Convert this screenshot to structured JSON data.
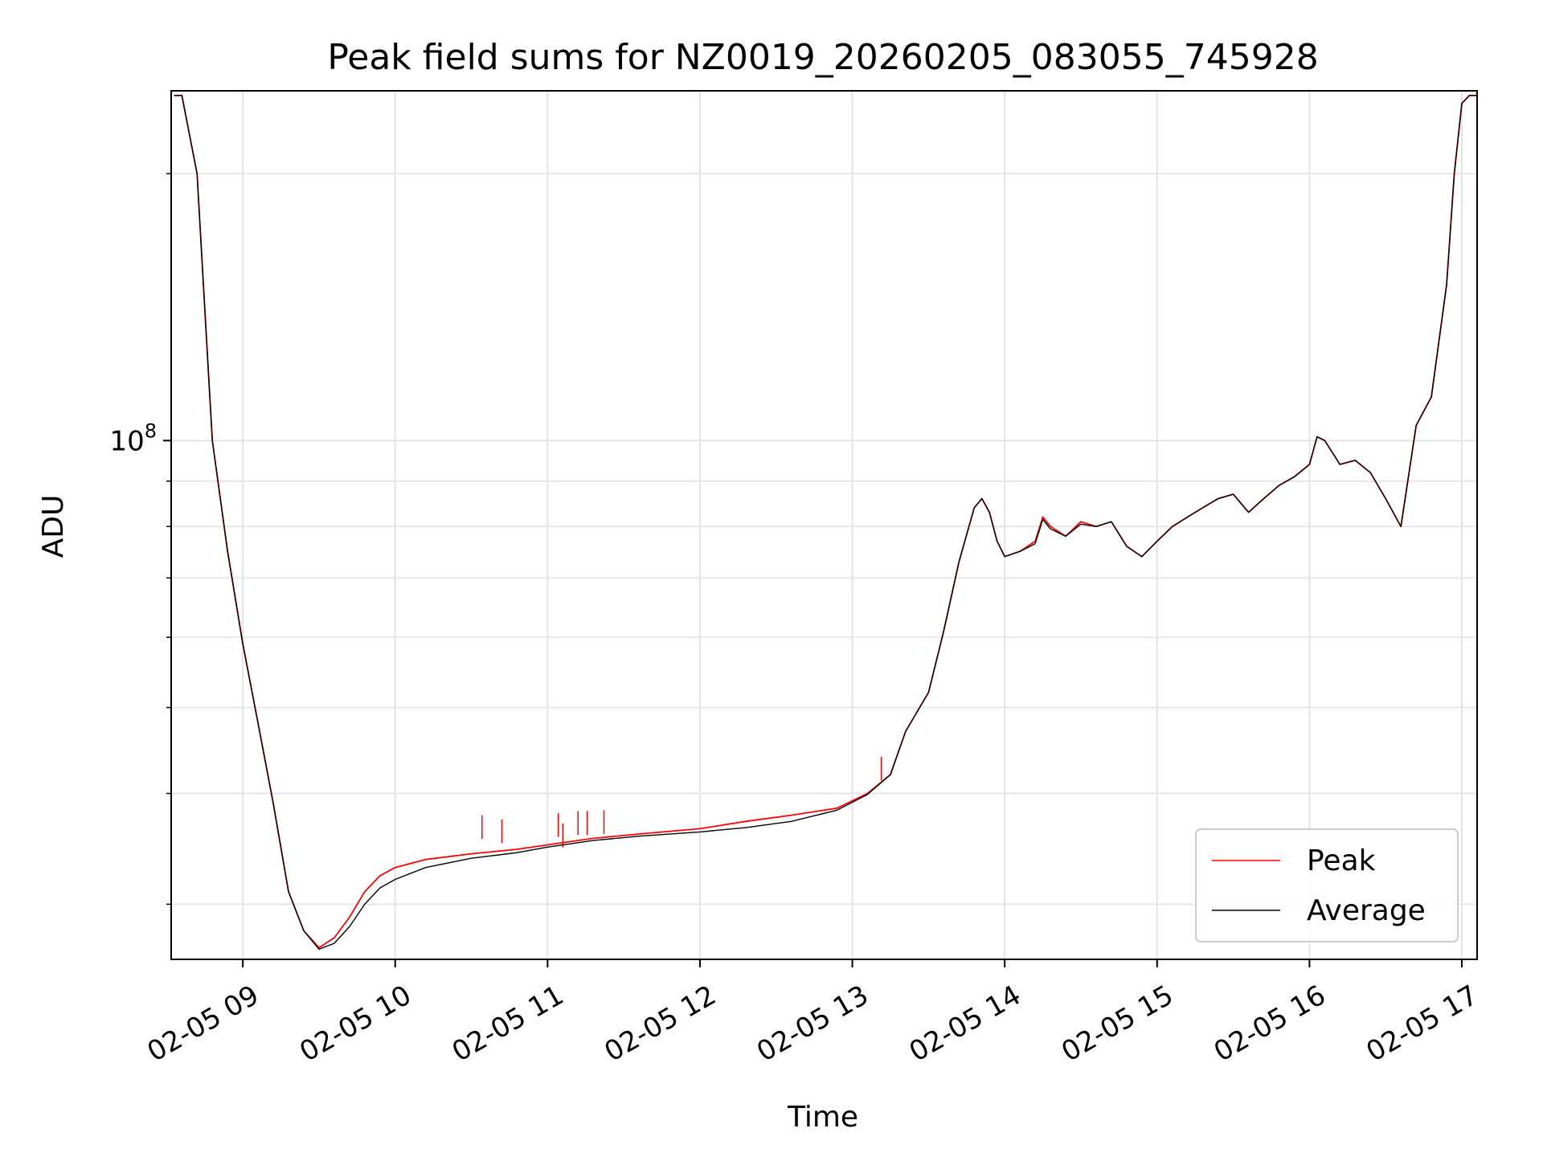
{
  "chart_data": {
    "type": "line",
    "title": "Peak field sums for NZ0019_20260205_083055_745928",
    "xlabel": "Time",
    "ylabel": "ADU",
    "yscale": "log",
    "grid": true,
    "legend_position": "lower-right",
    "xlim_hours": [
      8.53,
      17.1
    ],
    "ylim": [
      26000000,
      248000000
    ],
    "x_ticks": [
      {
        "value": 9,
        "label": "02-05 09"
      },
      {
        "value": 10,
        "label": "02-05 10"
      },
      {
        "value": 11,
        "label": "02-05 11"
      },
      {
        "value": 12,
        "label": "02-05 12"
      },
      {
        "value": 13,
        "label": "02-05 13"
      },
      {
        "value": 14,
        "label": "02-05 14"
      },
      {
        "value": 15,
        "label": "02-05 15"
      },
      {
        "value": 16,
        "label": "02-05 16"
      },
      {
        "value": 17,
        "label": "02-05 17"
      }
    ],
    "y_major_tick": {
      "value": 100000000,
      "base": "10",
      "exp": "8"
    },
    "y_minor_ticks": [
      30000000,
      40000000,
      50000000,
      60000000,
      70000000,
      80000000,
      90000000,
      200000000
    ],
    "x_unit": "hour of day (2026-02-05)",
    "series": [
      {
        "name": "Peak",
        "color": "#ff0000",
        "x": [
          8.55,
          8.6,
          8.7,
          8.8,
          8.9,
          9.0,
          9.1,
          9.2,
          9.3,
          9.4,
          9.5,
          9.6,
          9.7,
          9.8,
          9.9,
          10.0,
          10.2,
          10.5,
          10.8,
          11.0,
          11.3,
          11.6,
          12.0,
          12.3,
          12.6,
          12.9,
          13.1,
          13.25,
          13.35,
          13.5,
          13.6,
          13.7,
          13.8,
          13.85,
          13.9,
          13.95,
          14.0,
          14.1,
          14.2,
          14.25,
          14.3,
          14.4,
          14.5,
          14.6,
          14.7,
          14.8,
          14.9,
          15.0,
          15.1,
          15.2,
          15.3,
          15.4,
          15.5,
          15.6,
          15.7,
          15.8,
          15.9,
          16.0,
          16.05,
          16.1,
          16.2,
          16.3,
          16.4,
          16.5,
          16.6,
          16.7,
          16.8,
          16.9,
          16.95,
          17.0,
          17.05,
          17.1
        ],
        "y": [
          245000000,
          245000000,
          200000000,
          100000000,
          75000000,
          59000000,
          48000000,
          39000000,
          31000000,
          28000000,
          26800000,
          27500000,
          29000000,
          31000000,
          32300000,
          33000000,
          33700000,
          34200000,
          34600000,
          35000000,
          35600000,
          36000000,
          36500000,
          37200000,
          37800000,
          38500000,
          40000000,
          42000000,
          47000000,
          52000000,
          61000000,
          73000000,
          84000000,
          86000000,
          83000000,
          77000000,
          74000000,
          75000000,
          77000000,
          82000000,
          80000000,
          78000000,
          81000000,
          80000000,
          81000000,
          76000000,
          74000000,
          77000000,
          80000000,
          82000000,
          84000000,
          86000000,
          87000000,
          83000000,
          86000000,
          89000000,
          91000000,
          94000000,
          101000000,
          100000000,
          94000000,
          95000000,
          92000000,
          86000000,
          80000000,
          104000000,
          112000000,
          150000000,
          200000000,
          240000000,
          245000000,
          245000000
        ]
      },
      {
        "name": "Average",
        "color": "#000000",
        "x": [
          8.55,
          8.6,
          8.7,
          8.8,
          8.9,
          9.0,
          9.1,
          9.2,
          9.3,
          9.4,
          9.5,
          9.6,
          9.7,
          9.8,
          9.9,
          10.0,
          10.2,
          10.5,
          10.8,
          11.0,
          11.3,
          11.6,
          12.0,
          12.3,
          12.6,
          12.9,
          13.1,
          13.25,
          13.35,
          13.5,
          13.6,
          13.7,
          13.8,
          13.85,
          13.9,
          13.95,
          14.0,
          14.1,
          14.2,
          14.25,
          14.3,
          14.4,
          14.5,
          14.6,
          14.7,
          14.8,
          14.9,
          15.0,
          15.1,
          15.2,
          15.3,
          15.4,
          15.5,
          15.6,
          15.7,
          15.8,
          15.9,
          16.0,
          16.05,
          16.1,
          16.2,
          16.3,
          16.4,
          16.5,
          16.6,
          16.7,
          16.8,
          16.9,
          16.95,
          17.0,
          17.05,
          17.1
        ],
        "y": [
          245000000,
          245000000,
          200000000,
          100000000,
          75000000,
          59000000,
          48000000,
          39000000,
          31000000,
          28000000,
          26700000,
          27100000,
          28300000,
          30000000,
          31300000,
          32000000,
          33000000,
          33800000,
          34300000,
          34800000,
          35400000,
          35800000,
          36200000,
          36600000,
          37200000,
          38300000,
          39900000,
          42000000,
          47000000,
          52000000,
          61000000,
          73000000,
          84000000,
          86000000,
          83000000,
          77000000,
          74000000,
          75000000,
          76500000,
          81500000,
          79500000,
          78000000,
          80500000,
          80000000,
          81000000,
          76000000,
          74000000,
          77000000,
          80000000,
          82000000,
          84000000,
          86000000,
          87000000,
          83000000,
          86000000,
          89000000,
          91000000,
          94000000,
          101000000,
          100000000,
          94000000,
          95000000,
          92000000,
          86000000,
          80000000,
          104000000,
          112000000,
          150000000,
          200000000,
          240000000,
          245000000,
          245000000
        ]
      }
    ],
    "peak_spikes": [
      {
        "x": 10.57,
        "y": 37800000
      },
      {
        "x": 10.7,
        "y": 37400000
      },
      {
        "x": 11.07,
        "y": 38000000
      },
      {
        "x": 11.1,
        "y": 37000000
      },
      {
        "x": 11.2,
        "y": 38200000
      },
      {
        "x": 11.26,
        "y": 38200000
      },
      {
        "x": 11.37,
        "y": 38300000
      },
      {
        "x": 13.19,
        "y": 44000000
      }
    ]
  }
}
